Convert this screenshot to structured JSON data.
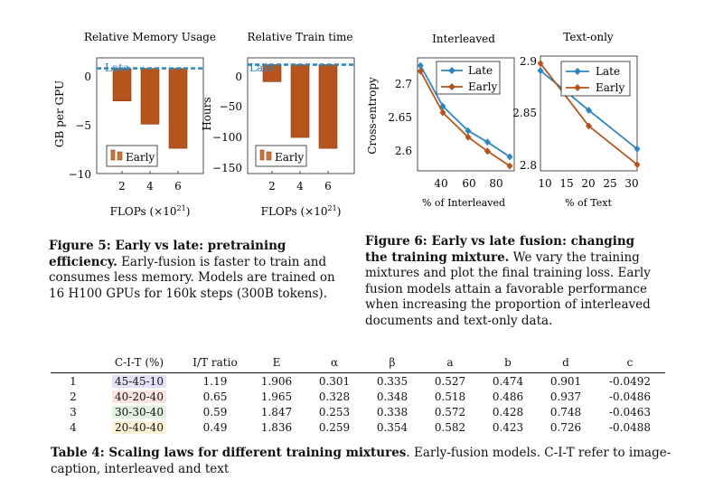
{
  "colors": {
    "early": "#b5541c",
    "late": "#2e86c1",
    "ink": "#222222"
  },
  "charts": {
    "memory": {
      "title": "Relative Memory Usage",
      "ylabel": "GB per GPU",
      "xlabel": "FLOPs (×10",
      "xlabel_sup": "21",
      "xlabel_end": ")",
      "late_label": "Late",
      "legend": "Early",
      "yticks": [
        "0",
        "−5",
        "−10"
      ]
    },
    "train_time": {
      "title": "Relative Train time",
      "ylabel": "Hours",
      "xlabel": "FLOPs (×10",
      "xlabel_sup": "21",
      "xlabel_end": ")",
      "late_label": "Late",
      "legend": "Early",
      "yticks": [
        "0",
        "−50",
        "−100",
        "−150"
      ]
    },
    "interleaved": {
      "title": "Interleaved",
      "ylabel": "Cross-entropy",
      "xlabel": "% of Interleaved",
      "legend": [
        "Late",
        "Early"
      ],
      "yticks": [
        "2.7",
        "2.65",
        "2.6"
      ],
      "xticks": [
        "40",
        "60",
        "80"
      ]
    },
    "text_only": {
      "title": "Text-only",
      "xlabel": "% of Text",
      "legend": [
        "Late",
        "Early"
      ],
      "yticks": [
        "2.9",
        "2.85",
        "2.8"
      ],
      "xticks": [
        "10",
        "15",
        "20",
        "25",
        "30"
      ]
    }
  },
  "chart_data": [
    {
      "type": "bar",
      "title": "Relative Memory Usage",
      "xlabel": "FLOPs (×10^21)",
      "ylabel": "GB per GPU",
      "categories": [
        "2",
        "4",
        "6"
      ],
      "series": [
        {
          "name": "Early",
          "values": [
            -3.1,
            -5.3,
            -7.6
          ]
        }
      ],
      "reference_line": {
        "name": "Late",
        "value": 0
      },
      "ylim": [
        -10,
        1
      ]
    },
    {
      "type": "bar",
      "title": "Relative Train time",
      "xlabel": "FLOPs (×10^21)",
      "ylabel": "Hours",
      "categories": [
        "2",
        "4",
        "6"
      ],
      "series": [
        {
          "name": "Early",
          "values": [
            -25,
            -107,
            -123
          ]
        }
      ],
      "reference_line": {
        "name": "Late",
        "value": 0
      },
      "ylim": [
        -160,
        10
      ]
    },
    {
      "type": "line",
      "title": "Interleaved",
      "xlabel": "% of Interleaved",
      "ylabel": "Cross-entropy",
      "x": [
        30,
        45,
        62,
        75,
        90
      ],
      "series": [
        {
          "name": "Late",
          "values": [
            2.724,
            2.666,
            2.631,
            2.615,
            2.594
          ]
        },
        {
          "name": "Early",
          "values": [
            2.716,
            2.657,
            2.622,
            2.602,
            2.581
          ]
        }
      ],
      "xlim": [
        28,
        93
      ],
      "ylim": [
        2.574,
        2.735
      ]
    },
    {
      "type": "line",
      "title": "Text-only",
      "xlabel": "% of Text",
      "x": [
        10,
        20,
        30
      ],
      "series": [
        {
          "name": "Late",
          "values": [
            2.888,
            2.85,
            2.813
          ]
        },
        {
          "name": "Early",
          "values": [
            2.895,
            2.835,
            2.798
          ]
        }
      ],
      "xlim": [
        10,
        30
      ],
      "ylim": [
        2.792,
        2.902
      ]
    }
  ],
  "captions": {
    "fig5_bold": "Figure 5: Early vs late: pretraining efficiency.",
    "fig5_text": " Early-fusion is faster to train and consumes less memory. Models are trained on 16 H100 GPUs for 160k steps (300B tokens).",
    "fig6_bold": "Figure 6: Early vs late fusion: changing the training mixture.",
    "fig6_text": " We vary the training mixtures and plot the final training loss. Early fusion models attain a favorable performance when increasing the proportion of interleaved documents and text-only data.",
    "table_bold": "Table 4: Scaling laws for different training mixtures",
    "table_text": ". Early-fusion models. C-I-T refer to image-caption, interleaved and text"
  },
  "table": {
    "headers": [
      "",
      "C-I-T (%)",
      "I/T ratio",
      "E",
      "α",
      "β",
      "a",
      "b",
      "d",
      "c"
    ],
    "mix_colors": [
      "#e3e0f7",
      "#fbe4e0",
      "#e2f2dc",
      "#fcf2d6"
    ],
    "rows": [
      [
        "1",
        "45-45-10",
        "1.19",
        "1.906",
        "0.301",
        "0.335",
        "0.527",
        "0.474",
        "0.901",
        "-0.0492"
      ],
      [
        "2",
        "40-20-40",
        "0.65",
        "1.965",
        "0.328",
        "0.348",
        "0.518",
        "0.486",
        "0.937",
        "-0.0486"
      ],
      [
        "3",
        "30-30-40",
        "0.59",
        "1.847",
        "0.253",
        "0.338",
        "0.572",
        "0.428",
        "0.748",
        "-0.0463"
      ],
      [
        "4",
        "20-40-40",
        "0.49",
        "1.836",
        "0.259",
        "0.354",
        "0.582",
        "0.423",
        "0.726",
        "-0.0488"
      ]
    ]
  }
}
